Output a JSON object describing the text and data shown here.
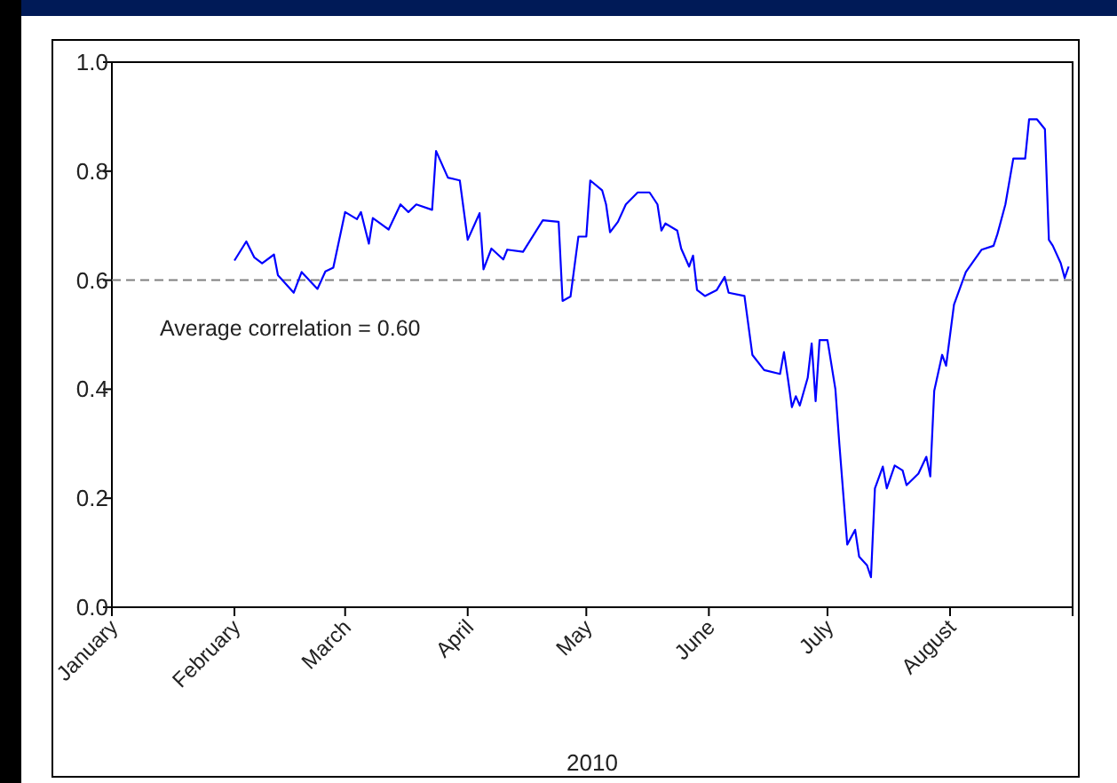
{
  "chart_data": {
    "type": "line",
    "xlabel": "2010",
    "xlim": [
      "2010-01-01",
      "2010-09-01"
    ],
    "xticks": [
      {
        "value": "2010-01-01",
        "label": "January"
      },
      {
        "value": "2010-02-01",
        "label": "February"
      },
      {
        "value": "2010-03-01",
        "label": "March"
      },
      {
        "value": "2010-04-01",
        "label": "April"
      },
      {
        "value": "2010-05-01",
        "label": "May"
      },
      {
        "value": "2010-06-01",
        "label": "June"
      },
      {
        "value": "2010-07-01",
        "label": "July"
      },
      {
        "value": "2010-08-01",
        "label": "August"
      },
      {
        "value": "2010-09-01",
        "label": null
      }
    ],
    "ylim": [
      0,
      1
    ],
    "yticks": [
      {
        "value": 0,
        "label": "0.0"
      },
      0.2,
      0.4,
      0.6,
      0.8,
      {
        "value": 1,
        "label": "1.0"
      }
    ],
    "grid": false,
    "line_style": "solid",
    "marker": "none",
    "ref_lines": [
      {
        "axis": "y",
        "value": 0.6,
        "label": "Average correlation = 0.60",
        "color": "#808080",
        "line_style": "dashed"
      }
    ],
    "series": [
      {
        "color": "#0000ff",
        "x": [
          "2010-02-01",
          "2010-02-04",
          "2010-02-06",
          "2010-02-08",
          "2010-02-11",
          "2010-02-12",
          "2010-02-16",
          "2010-02-18",
          "2010-02-22",
          "2010-02-24",
          "2010-02-26",
          "2010-03-01",
          "2010-03-04",
          "2010-03-05",
          "2010-03-07",
          "2010-03-08",
          "2010-03-12",
          "2010-03-15",
          "2010-03-17",
          "2010-03-19",
          "2010-03-23",
          "2010-03-24",
          "2010-03-27",
          "2010-03-30",
          "2010-04-01",
          "2010-04-04",
          "2010-04-05",
          "2010-04-07",
          "2010-04-10",
          "2010-04-11",
          "2010-04-15",
          "2010-04-20",
          "2010-04-24",
          "2010-04-25",
          "2010-04-27",
          "2010-04-29",
          "2010-05-01",
          "2010-05-02",
          "2010-05-05",
          "2010-05-06",
          "2010-05-07",
          "2010-05-09",
          "2010-05-11",
          "2010-05-14",
          "2010-05-17",
          "2010-05-19",
          "2010-05-20",
          "2010-05-21",
          "2010-05-24",
          "2010-05-25",
          "2010-05-27",
          "2010-05-28",
          "2010-05-29",
          "2010-05-31",
          "2010-06-03",
          "2010-06-05",
          "2010-06-06",
          "2010-06-10",
          "2010-06-12",
          "2010-06-15",
          "2010-06-19",
          "2010-06-20",
          "2010-06-21",
          "2010-06-22",
          "2010-06-23",
          "2010-06-24",
          "2010-06-26",
          "2010-06-27",
          "2010-06-28",
          "2010-06-29",
          "2010-07-01",
          "2010-07-03",
          "2010-07-04",
          "2010-07-06",
          "2010-07-08",
          "2010-07-09",
          "2010-07-11",
          "2010-07-12",
          "2010-07-13",
          "2010-07-15",
          "2010-07-16",
          "2010-07-18",
          "2010-07-20",
          "2010-07-21",
          "2010-07-24",
          "2010-07-26",
          "2010-07-27",
          "2010-07-28",
          "2010-07-30",
          "2010-07-31",
          "2010-08-02",
          "2010-08-05",
          "2010-08-09",
          "2010-08-12",
          "2010-08-13",
          "2010-08-15",
          "2010-08-17",
          "2010-08-20",
          "2010-08-21",
          "2010-08-23",
          "2010-08-25",
          "2010-08-26",
          "2010-08-27",
          "2010-08-29",
          "2010-08-30",
          "2010-08-31"
        ],
        "values": [
          0.636,
          0.671,
          0.642,
          0.631,
          0.647,
          0.609,
          0.577,
          0.615,
          0.584,
          0.616,
          0.623,
          0.725,
          0.712,
          0.725,
          0.667,
          0.714,
          0.693,
          0.739,
          0.725,
          0.739,
          0.729,
          0.837,
          0.788,
          0.783,
          0.674,
          0.723,
          0.62,
          0.658,
          0.638,
          0.656,
          0.652,
          0.71,
          0.707,
          0.562,
          0.57,
          0.68,
          0.68,
          0.783,
          0.765,
          0.739,
          0.688,
          0.707,
          0.739,
          0.761,
          0.761,
          0.739,
          0.691,
          0.704,
          0.691,
          0.658,
          0.625,
          0.645,
          0.582,
          0.571,
          0.582,
          0.606,
          0.577,
          0.571,
          0.463,
          0.435,
          0.428,
          0.468,
          0.419,
          0.367,
          0.387,
          0.37,
          0.421,
          0.484,
          0.378,
          0.49,
          0.49,
          0.4,
          0.3,
          0.115,
          0.142,
          0.093,
          0.077,
          0.055,
          0.218,
          0.258,
          0.218,
          0.26,
          0.251,
          0.224,
          0.245,
          0.276,
          0.24,
          0.397,
          0.463,
          0.443,
          0.555,
          0.615,
          0.656,
          0.663,
          0.685,
          0.739,
          0.823,
          0.823,
          0.895,
          0.895,
          0.877,
          0.674,
          0.663,
          0.631,
          0.604,
          0.625
        ]
      }
    ]
  }
}
